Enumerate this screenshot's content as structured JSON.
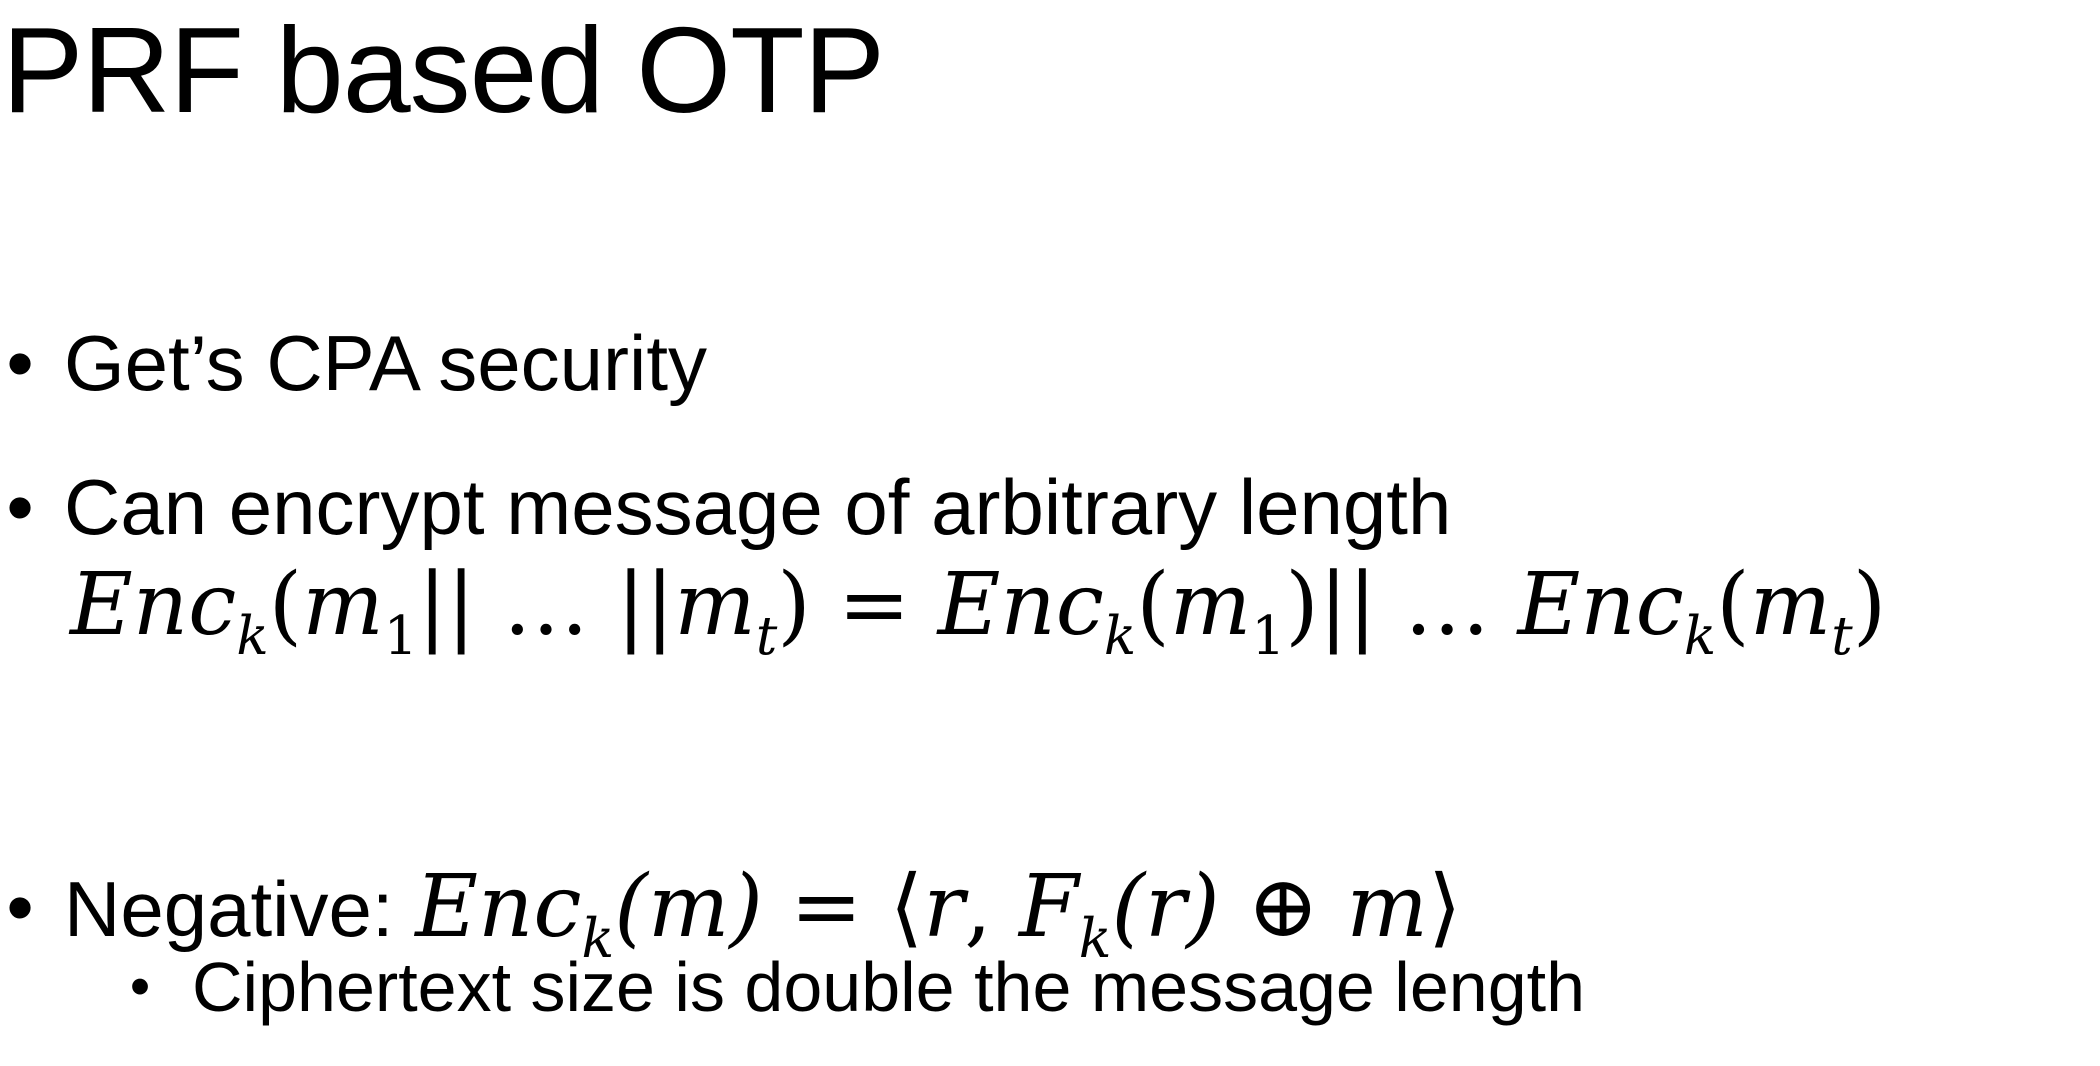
{
  "slide": {
    "title": "PRF based OTP",
    "bullets": [
      {
        "text": "Get’s CPA security"
      },
      {
        "text": "Can encrypt message of arbitrary length"
      },
      {
        "text": "Negative: "
      }
    ],
    "equation": {
      "lhs_fn": "Enc",
      "lhs_sub": "k",
      "lhs_open": "(",
      "m1": "m",
      "m1_sub": "1",
      "concat1": "|| … ||",
      "mt": "m",
      "mt_sub": "t",
      "lhs_close": ")",
      "equals": " = ",
      "rhs1_fn": "Enc",
      "rhs1_sub": "k",
      "rhs1_arg_open": "(",
      "rhs1_m": "m",
      "rhs1_m_sub": "1",
      "rhs1_arg_close": ")",
      "concat2": "|| … ",
      "rhs2_fn": "Enc",
      "rhs2_sub": "k",
      "rhs2_arg_open": "(",
      "rhs2_m": "m",
      "rhs2_m_sub": "t",
      "rhs2_arg_close": ")"
    },
    "negative_formula": {
      "fn": "Enc",
      "sub": "k",
      "arg": "(m)",
      "equals": " = ",
      "langle": "⟨",
      "r1": "r",
      "comma": ", ",
      "F": "F",
      "F_sub": "k",
      "F_arg": "(r)",
      "xor": " ⊕ ",
      "m": "m",
      "rangle": "⟩"
    },
    "sub_bullet": "Ciphertext size is double the message length",
    "bullet_glyph": "•"
  }
}
